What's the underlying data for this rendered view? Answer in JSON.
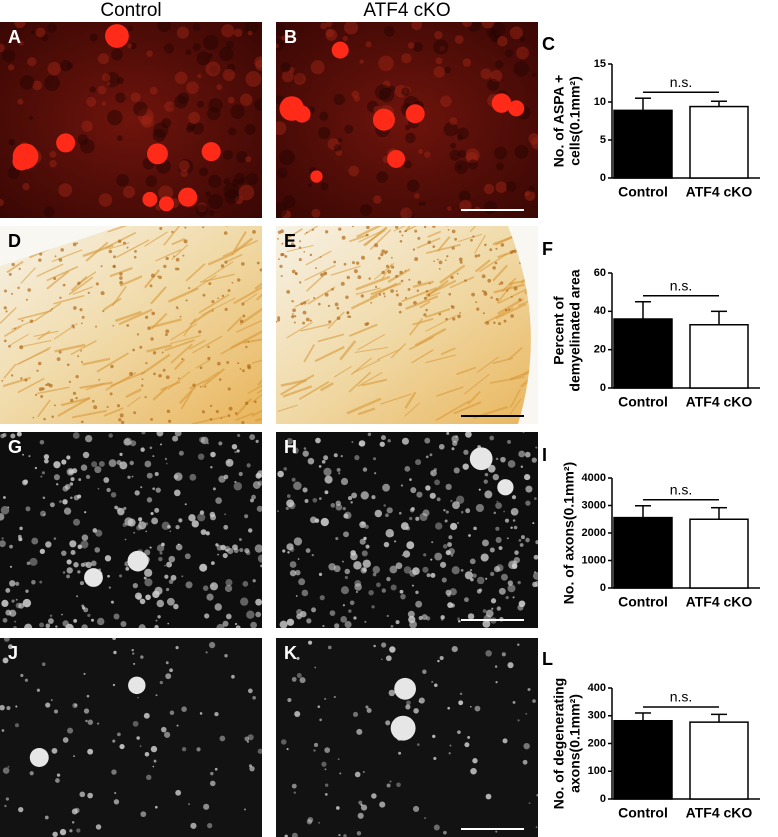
{
  "column_headers": [
    "Control",
    "ATF4 cKO"
  ],
  "panel_labels": [
    "A",
    "B",
    "D",
    "E",
    "G",
    "H",
    "J",
    "K"
  ],
  "chart_data": [
    {
      "type": "bar",
      "panel_label": "C",
      "y_label": [
        "No. of ASPA +",
        "cells(0.1mm²)"
      ],
      "categories": [
        "Control",
        "ATF4 cKO"
      ],
      "values": [
        8.9,
        9.4
      ],
      "errors": [
        1.6,
        0.7
      ],
      "colors": [
        "#000000",
        "#ffffff"
      ],
      "ylim": [
        0,
        15
      ],
      "yticks": [
        0,
        5,
        10,
        15
      ],
      "annotation": "n.s."
    },
    {
      "type": "bar",
      "panel_label": "F",
      "y_label": [
        "Percent of",
        "demyelinated area"
      ],
      "categories": [
        "Control",
        "ATF4 cKO"
      ],
      "values": [
        36,
        33
      ],
      "errors": [
        9,
        7
      ],
      "colors": [
        "#000000",
        "#ffffff"
      ],
      "ylim": [
        0,
        60
      ],
      "yticks": [
        0,
        20,
        40,
        60
      ],
      "annotation": "n.s."
    },
    {
      "type": "bar",
      "panel_label": "I",
      "y_label": [
        "No. of axons(0.1mm²)"
      ],
      "categories": [
        "Control",
        "ATF4 cKO"
      ],
      "values": [
        2560,
        2500
      ],
      "errors": [
        430,
        420
      ],
      "colors": [
        "#000000",
        "#ffffff"
      ],
      "ylim": [
        0,
        4000
      ],
      "yticks": [
        0,
        1000,
        2000,
        3000,
        4000
      ],
      "annotation": "n.s."
    },
    {
      "type": "bar",
      "panel_label": "L",
      "y_label": [
        "No. of degenerating",
        "axons(0.1mm²)"
      ],
      "categories": [
        "Control",
        "ATF4 cKO"
      ],
      "values": [
        282,
        277
      ],
      "errors": [
        28,
        28
      ],
      "colors": [
        "#000000",
        "#ffffff"
      ],
      "ylim": [
        0,
        400
      ],
      "yticks": [
        0,
        100,
        200,
        300,
        400
      ],
      "annotation": "n.s."
    }
  ]
}
